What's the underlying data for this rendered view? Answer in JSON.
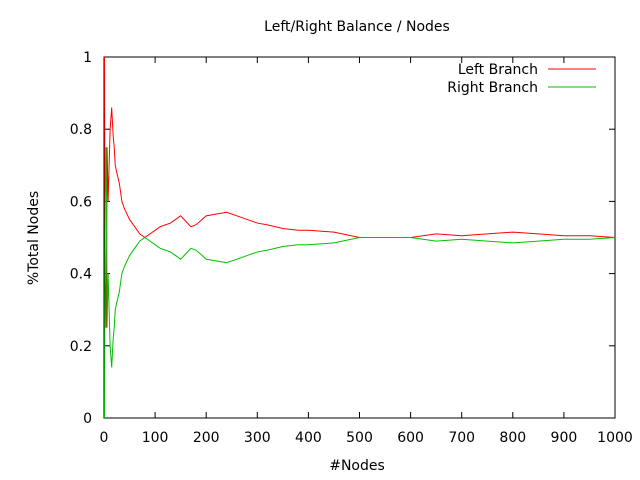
{
  "chart_data": {
    "type": "line",
    "title": "Left/Right Balance / Nodes",
    "xlabel": "#Nodes",
    "ylabel": "%Total Nodes",
    "xlim": [
      0,
      1000
    ],
    "ylim": [
      0,
      1
    ],
    "x_ticks": [
      "0",
      "100",
      "200",
      "300",
      "400",
      "500",
      "600",
      "700",
      "800",
      "900",
      "1000"
    ],
    "y_ticks": [
      "0",
      "0.2",
      "0.4",
      "0.6",
      "0.8",
      "1"
    ],
    "grid": false,
    "legend": "top-right",
    "series": [
      {
        "name": "Left Branch",
        "color": "#ff0000",
        "x": [
          1,
          2,
          3,
          4,
          5,
          6,
          8,
          10,
          12,
          15,
          18,
          20,
          22,
          25,
          30,
          35,
          40,
          50,
          60,
          70,
          80,
          90,
          100,
          110,
          120,
          130,
          140,
          150,
          160,
          170,
          180,
          200,
          220,
          240,
          260,
          280,
          300,
          320,
          350,
          380,
          400,
          450,
          500,
          550,
          600,
          650,
          700,
          750,
          800,
          850,
          900,
          950,
          1000
        ],
        "y": [
          1.0,
          0.5,
          0.33,
          0.25,
          0.4,
          0.75,
          0.6,
          0.7,
          0.8,
          0.86,
          0.78,
          0.75,
          0.7,
          0.68,
          0.65,
          0.6,
          0.58,
          0.55,
          0.53,
          0.51,
          0.5,
          0.51,
          0.52,
          0.53,
          0.535,
          0.54,
          0.55,
          0.56,
          0.545,
          0.53,
          0.535,
          0.56,
          0.565,
          0.57,
          0.56,
          0.55,
          0.54,
          0.535,
          0.525,
          0.52,
          0.52,
          0.515,
          0.5,
          0.5,
          0.5,
          0.51,
          0.505,
          0.51,
          0.515,
          0.51,
          0.505,
          0.505,
          0.5
        ]
      },
      {
        "name": "Right Branch",
        "color": "#00c000",
        "x": [
          1,
          2,
          3,
          4,
          5,
          6,
          8,
          10,
          12,
          15,
          18,
          20,
          22,
          25,
          30,
          35,
          40,
          50,
          60,
          70,
          80,
          90,
          100,
          110,
          120,
          130,
          140,
          150,
          160,
          170,
          180,
          200,
          220,
          240,
          260,
          280,
          300,
          320,
          350,
          380,
          400,
          450,
          500,
          550,
          600,
          650,
          700,
          750,
          800,
          850,
          900,
          950,
          1000
        ],
        "y": [
          0.0,
          0.5,
          0.67,
          0.75,
          0.6,
          0.25,
          0.4,
          0.3,
          0.2,
          0.14,
          0.22,
          0.25,
          0.3,
          0.32,
          0.35,
          0.4,
          0.42,
          0.45,
          0.47,
          0.49,
          0.5,
          0.49,
          0.48,
          0.47,
          0.465,
          0.46,
          0.45,
          0.44,
          0.455,
          0.47,
          0.465,
          0.44,
          0.435,
          0.43,
          0.44,
          0.45,
          0.46,
          0.465,
          0.475,
          0.48,
          0.48,
          0.485,
          0.5,
          0.5,
          0.5,
          0.49,
          0.495,
          0.49,
          0.485,
          0.49,
          0.495,
          0.495,
          0.5
        ]
      }
    ]
  }
}
